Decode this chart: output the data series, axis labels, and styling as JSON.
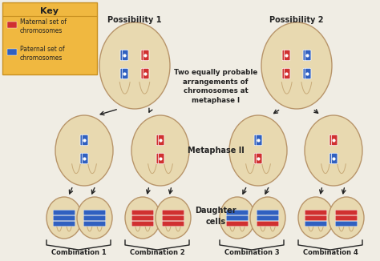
{
  "bg_color": "#f0ede4",
  "cell_color": "#e8d9b0",
  "cell_edge_color": "#b8956a",
  "cell_inner_color": "#c8aa78",
  "maternal_color": "#d03030",
  "paternal_color": "#3060c0",
  "key_bg": "#f0b840",
  "key_border": "#c89020",
  "key_title": "Key",
  "key_maternal": "Maternal set of\nchromosomes",
  "key_paternal": "Paternal set of\nchromosomes",
  "label_poss1": "Possibility 1",
  "label_poss2": "Possibility 2",
  "label_meta1": "Two equally probable\narrangements of\nchromosomes at\nmetaphase I",
  "label_meta2": "Metaphase II",
  "label_daughter": "Daughter\ncells",
  "label_comb1": "Combination 1",
  "label_comb2": "Combination 2",
  "label_comb3": "Combination 3",
  "label_comb4": "Combination 4",
  "arrow_color": "#222222",
  "text_color": "#222222"
}
